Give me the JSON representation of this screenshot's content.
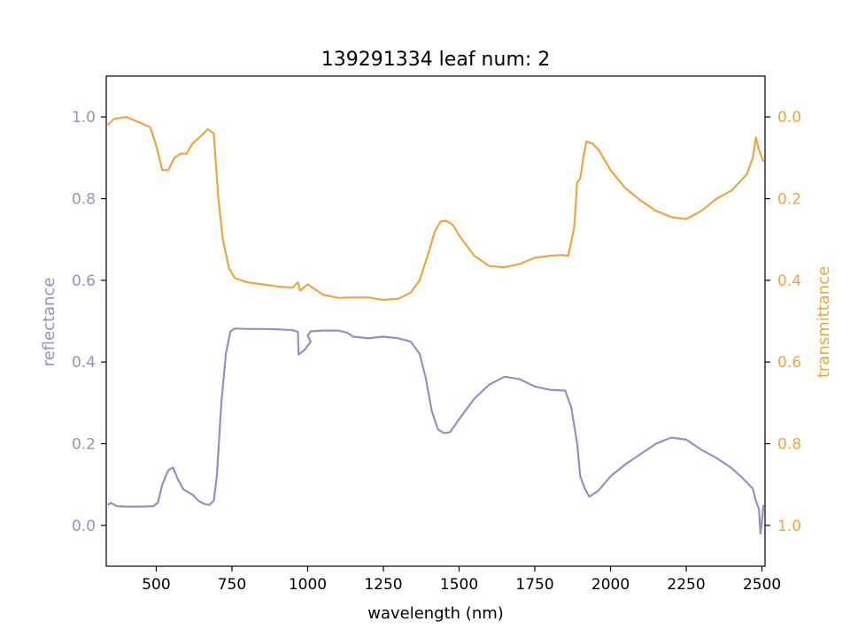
{
  "chart_data": {
    "type": "line",
    "title": "139291334 leaf num: 2",
    "xlabel": "wavelength (nm)",
    "ylabel_left": "reflectance",
    "ylabel_right": "transmittance",
    "xlim": [
      335,
      2510
    ],
    "ylim_left": [
      -0.1,
      1.1
    ],
    "ylim_right": [
      1.1,
      -0.1
    ],
    "right_axis_inverted": true,
    "x_ticks": [
      "500",
      "750",
      "1000",
      "1250",
      "1500",
      "1750",
      "2000",
      "2250",
      "2500"
    ],
    "y_ticks_left": [
      "0.0",
      "0.2",
      "0.4",
      "0.6",
      "0.8",
      "1.0"
    ],
    "y_ticks_right": [
      "0.0",
      "0.2",
      "0.4",
      "0.6",
      "0.8",
      "1.0"
    ],
    "grid": false,
    "series": [
      {
        "axis": "left",
        "color": "#958fc4",
        "points": [
          [
            340,
            0.05
          ],
          [
            350,
            0.055
          ],
          [
            370,
            0.047
          ],
          [
            400,
            0.046
          ],
          [
            450,
            0.046
          ],
          [
            490,
            0.047
          ],
          [
            505,
            0.055
          ],
          [
            520,
            0.1
          ],
          [
            540,
            0.135
          ],
          [
            555,
            0.142
          ],
          [
            570,
            0.115
          ],
          [
            590,
            0.088
          ],
          [
            620,
            0.075
          ],
          [
            640,
            0.06
          ],
          [
            660,
            0.052
          ],
          [
            675,
            0.05
          ],
          [
            690,
            0.06
          ],
          [
            700,
            0.12
          ],
          [
            715,
            0.3
          ],
          [
            730,
            0.42
          ],
          [
            745,
            0.475
          ],
          [
            760,
            0.482
          ],
          [
            800,
            0.481
          ],
          [
            850,
            0.481
          ],
          [
            900,
            0.48
          ],
          [
            950,
            0.478
          ],
          [
            968,
            0.474
          ],
          [
            970,
            0.418
          ],
          [
            990,
            0.43
          ],
          [
            1010,
            0.45
          ],
          [
            1000,
            0.465
          ],
          [
            1010,
            0.475
          ],
          [
            1050,
            0.477
          ],
          [
            1100,
            0.477
          ],
          [
            1130,
            0.472
          ],
          [
            1150,
            0.462
          ],
          [
            1200,
            0.458
          ],
          [
            1250,
            0.462
          ],
          [
            1300,
            0.458
          ],
          [
            1340,
            0.45
          ],
          [
            1370,
            0.42
          ],
          [
            1390,
            0.36
          ],
          [
            1410,
            0.28
          ],
          [
            1430,
            0.235
          ],
          [
            1450,
            0.226
          ],
          [
            1470,
            0.228
          ],
          [
            1500,
            0.26
          ],
          [
            1550,
            0.31
          ],
          [
            1600,
            0.345
          ],
          [
            1650,
            0.364
          ],
          [
            1700,
            0.358
          ],
          [
            1750,
            0.34
          ],
          [
            1800,
            0.332
          ],
          [
            1850,
            0.33
          ],
          [
            1870,
            0.29
          ],
          [
            1890,
            0.2
          ],
          [
            1900,
            0.12
          ],
          [
            1915,
            0.09
          ],
          [
            1930,
            0.07
          ],
          [
            1960,
            0.085
          ],
          [
            2000,
            0.12
          ],
          [
            2050,
            0.15
          ],
          [
            2100,
            0.175
          ],
          [
            2150,
            0.2
          ],
          [
            2200,
            0.215
          ],
          [
            2250,
            0.21
          ],
          [
            2300,
            0.185
          ],
          [
            2350,
            0.165
          ],
          [
            2400,
            0.14
          ],
          [
            2430,
            0.12
          ],
          [
            2450,
            0.105
          ],
          [
            2470,
            0.09
          ],
          [
            2480,
            0.06
          ],
          [
            2490,
            0.04
          ],
          [
            2495,
            -0.02
          ],
          [
            2500,
            0.01
          ],
          [
            2505,
            0.05
          ]
        ]
      },
      {
        "axis": "right",
        "color": "#eda53f",
        "points": [
          [
            340,
            0.02
          ],
          [
            360,
            0.005
          ],
          [
            400,
            0.0
          ],
          [
            450,
            0.015
          ],
          [
            480,
            0.025
          ],
          [
            500,
            0.07
          ],
          [
            520,
            0.13
          ],
          [
            540,
            0.13
          ],
          [
            560,
            0.1
          ],
          [
            580,
            0.09
          ],
          [
            600,
            0.09
          ],
          [
            620,
            0.065
          ],
          [
            650,
            0.045
          ],
          [
            670,
            0.03
          ],
          [
            690,
            0.04
          ],
          [
            705,
            0.2
          ],
          [
            720,
            0.3
          ],
          [
            740,
            0.37
          ],
          [
            760,
            0.395
          ],
          [
            800,
            0.405
          ],
          [
            850,
            0.41
          ],
          [
            900,
            0.415
          ],
          [
            950,
            0.418
          ],
          [
            968,
            0.405
          ],
          [
            975,
            0.425
          ],
          [
            1000,
            0.41
          ],
          [
            1050,
            0.435
          ],
          [
            1100,
            0.443
          ],
          [
            1150,
            0.442
          ],
          [
            1200,
            0.442
          ],
          [
            1250,
            0.448
          ],
          [
            1300,
            0.445
          ],
          [
            1340,
            0.43
          ],
          [
            1370,
            0.4
          ],
          [
            1400,
            0.33
          ],
          [
            1420,
            0.28
          ],
          [
            1440,
            0.255
          ],
          [
            1460,
            0.255
          ],
          [
            1480,
            0.265
          ],
          [
            1500,
            0.29
          ],
          [
            1550,
            0.34
          ],
          [
            1600,
            0.365
          ],
          [
            1650,
            0.368
          ],
          [
            1700,
            0.36
          ],
          [
            1750,
            0.345
          ],
          [
            1800,
            0.34
          ],
          [
            1840,
            0.338
          ],
          [
            1860,
            0.34
          ],
          [
            1880,
            0.27
          ],
          [
            1890,
            0.16
          ],
          [
            1900,
            0.15
          ],
          [
            1910,
            0.1
          ],
          [
            1920,
            0.06
          ],
          [
            1940,
            0.065
          ],
          [
            1960,
            0.08
          ],
          [
            2000,
            0.13
          ],
          [
            2050,
            0.175
          ],
          [
            2100,
            0.205
          ],
          [
            2150,
            0.23
          ],
          [
            2200,
            0.245
          ],
          [
            2250,
            0.25
          ],
          [
            2300,
            0.23
          ],
          [
            2350,
            0.2
          ],
          [
            2400,
            0.18
          ],
          [
            2450,
            0.14
          ],
          [
            2470,
            0.1
          ],
          [
            2480,
            0.05
          ],
          [
            2490,
            0.08
          ],
          [
            2500,
            0.1
          ],
          [
            2505,
            0.11
          ]
        ]
      }
    ]
  }
}
